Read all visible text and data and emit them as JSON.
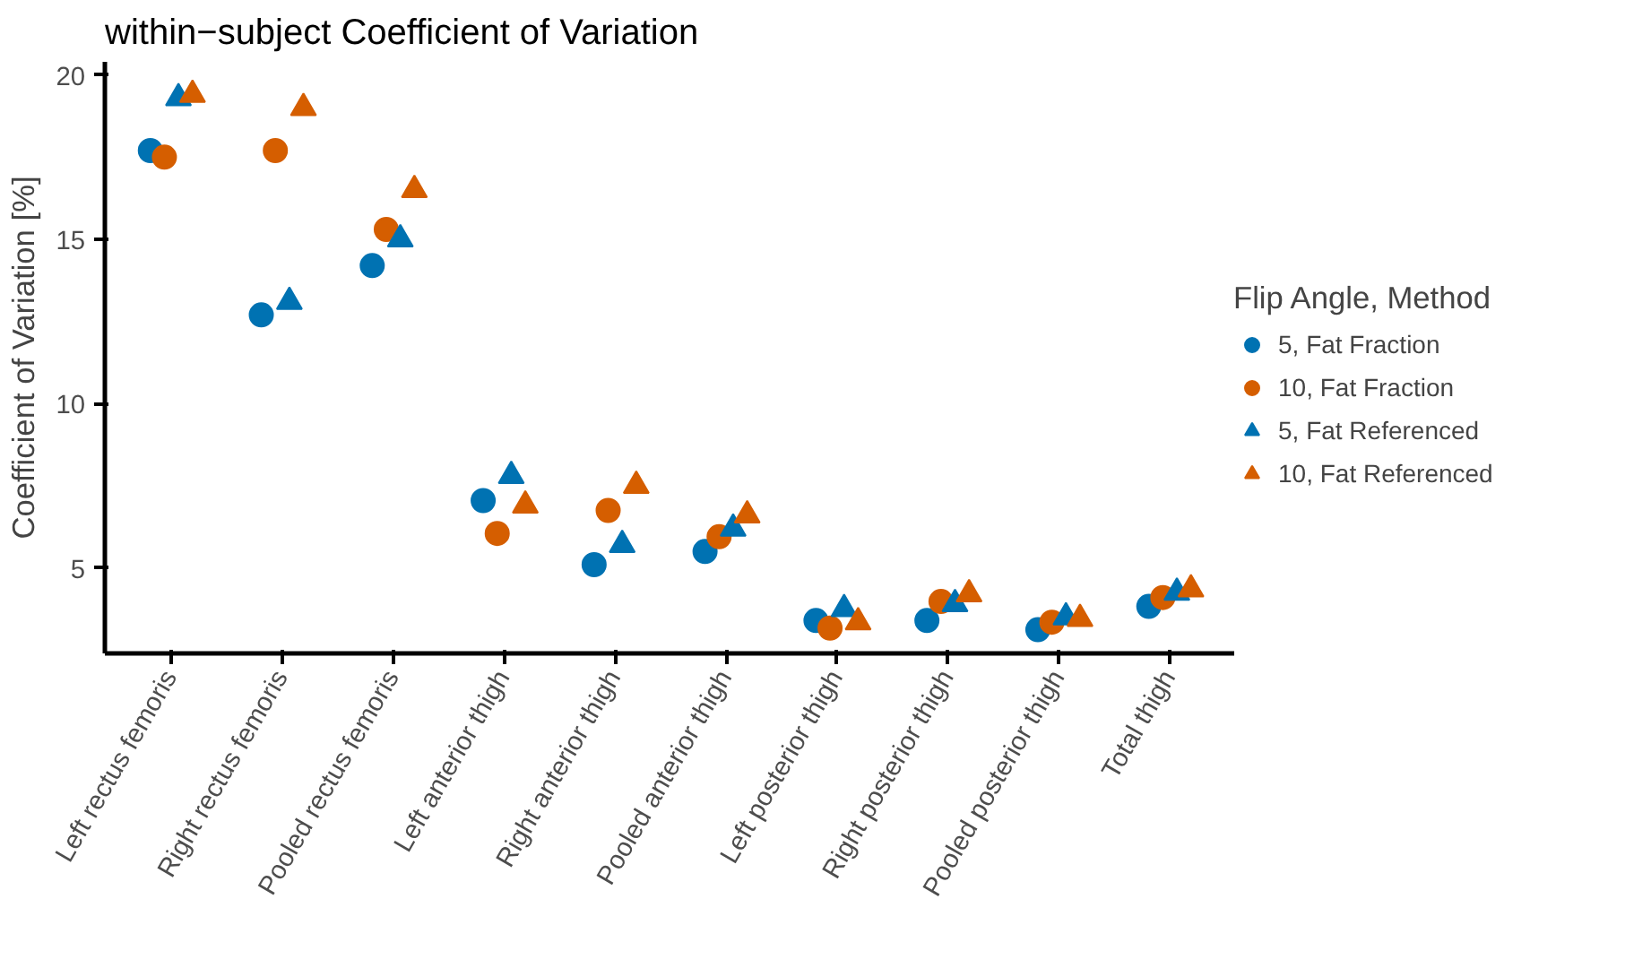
{
  "chart_data": {
    "type": "scatter",
    "title": "within−subject Coefficient of Variation",
    "ylabel": "Coefficient of Variation [%]",
    "legend_title": "Flip Angle, Method",
    "categories": [
      "Left rectus femoris",
      "Right rectus femoris",
      "Pooled rectus femoris",
      "Left anterior thigh",
      "Right anterior thigh",
      "Pooled anterior thigh",
      "Left posterior thigh",
      "Right posterior thigh",
      "Pooled posterior thigh",
      "Total thigh"
    ],
    "series": [
      {
        "name": "5, Fat Fraction",
        "color": "#0072b2",
        "marker": "circle",
        "values": [
          17.7,
          12.7,
          14.2,
          7.05,
          5.1,
          5.5,
          3.4,
          3.4,
          3.12,
          3.83
        ]
      },
      {
        "name": "10, Fat Fraction",
        "color": "#d55e00",
        "marker": "circle",
        "values": [
          17.5,
          17.7,
          15.3,
          6.05,
          6.75,
          5.95,
          3.17,
          3.98,
          3.35,
          4.1
        ]
      },
      {
        "name": "5, Fat Referenced",
        "color": "#0072b2",
        "marker": "triangle",
        "values": [
          19.3,
          13.1,
          15.0,
          7.8,
          5.7,
          6.2,
          3.75,
          3.9,
          3.5,
          4.25
        ]
      },
      {
        "name": "10, Fat Referenced",
        "color": "#d55e00",
        "marker": "triangle",
        "values": [
          19.4,
          19.0,
          16.5,
          6.9,
          7.5,
          6.6,
          3.35,
          4.2,
          3.45,
          4.35
        ]
      }
    ],
    "ylim": [
      2.4,
      20.4
    ],
    "yticks": [
      5,
      10,
      15,
      20
    ],
    "grid": false,
    "legend": "right"
  }
}
